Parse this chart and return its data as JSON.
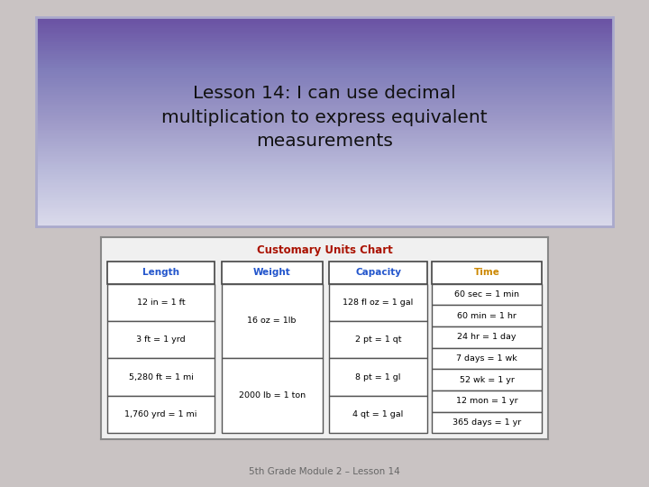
{
  "title": "Lesson 14: I can use decimal\nmultiplication to express equivalent\nmeasurements",
  "background_color": "#c9c3c3",
  "title_box_color_top": "#e8e0f8",
  "title_box_color_bottom": "#b8a8d8",
  "chart_title": "Customary Units Chart",
  "chart_title_color": "#aa1100",
  "chart_bg": "#f0f0f0",
  "footer": "5th Grade Module 2 – Lesson 14",
  "footer_color": "#666666",
  "columns": [
    {
      "header": "Length",
      "header_color": "#2255cc",
      "rows": [
        "12 in = 1 ft",
        "3 ft = 1 yrd",
        "5,280 ft = 1 mi",
        "1,760 yrd = 1 mi"
      ]
    },
    {
      "header": "Weight",
      "header_color": "#2255cc",
      "rows": [
        "16 oz = 1lb",
        "2000 lb = 1 ton"
      ]
    },
    {
      "header": "Capacity",
      "header_color": "#2255cc",
      "rows": [
        "128 fl oz = 1 gal",
        "2 pt = 1 qt",
        "8 pt = 1 gl",
        "4 qt = 1 gal"
      ]
    },
    {
      "header": "Time",
      "header_color": "#cc8800",
      "rows": [
        "60 sec = 1 min",
        "60 min = 1 hr",
        "24 hr = 1 day",
        "7 days = 1 wk",
        "52 wk = 1 yr",
        "12 mon = 1 yr",
        "365 days = 1 yr"
      ]
    }
  ]
}
